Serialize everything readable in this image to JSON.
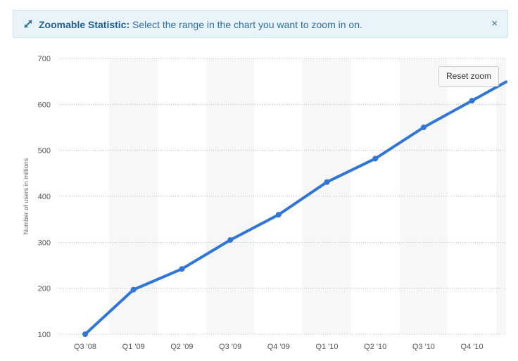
{
  "banner": {
    "title": "Zoomable Statistic:",
    "message": "Select the range in the chart you want to zoom in on.",
    "close_glyph": "×",
    "expand_icon": "expand-arrows-icon",
    "color": "#2f6fa3"
  },
  "reset_zoom_label": "Reset zoom",
  "chart_data": {
    "type": "line",
    "title": "",
    "xlabel": "",
    "ylabel": "Number of users in millions",
    "categories": [
      "Q3 '08",
      "Q1 '09",
      "Q2 '09",
      "Q3 '09",
      "Q4 '09",
      "Q1 '10",
      "Q2 '10",
      "Q3 '10",
      "Q4 '10"
    ],
    "series": [
      {
        "values": [
          100,
          197,
          242,
          305,
          360,
          431,
          482,
          550,
          608
        ],
        "color": "#2f76d6"
      }
    ],
    "ylim": [
      100,
      700
    ],
    "yticks": [
      100,
      200,
      300,
      400,
      500,
      600,
      700
    ],
    "grid": "dotted horizontal",
    "legend": "none"
  }
}
